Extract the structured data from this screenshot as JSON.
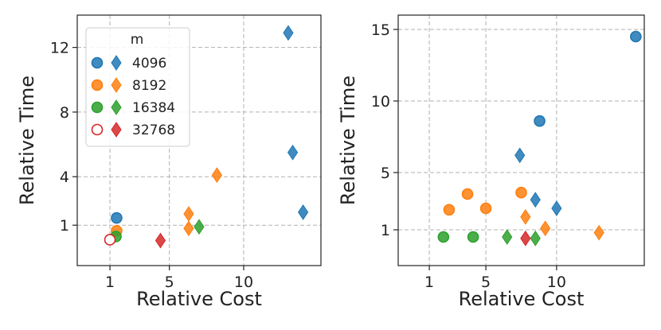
{
  "colors": {
    "4096": "#1f77b4",
    "8192": "#ff7f0e",
    "16384": "#2ca02c",
    "32768": "#d62728"
  },
  "legend": {
    "title": "m",
    "entries": [
      {
        "label": "4096",
        "key": "4096",
        "circle_filled": true
      },
      {
        "label": "8192",
        "key": "8192",
        "circle_filled": true
      },
      {
        "label": "16384",
        "key": "16384",
        "circle_filled": true
      },
      {
        "label": "32768",
        "key": "32768",
        "circle_filled": false
      }
    ]
  },
  "chart_data": [
    {
      "type": "scatter",
      "title": "",
      "xlabel": "Relative Cost",
      "ylabel": "Relative Time",
      "xlim": [
        -1.2,
        15.2
      ],
      "ylim": [
        -1.5,
        14.0
      ],
      "xticks": [
        1,
        5,
        10
      ],
      "yticks": [
        1,
        4,
        8,
        12
      ],
      "grid": true,
      "legend_position": "top-left",
      "points": [
        {
          "m": "4096",
          "marker": "circle",
          "x": 1.45,
          "y": 1.45
        },
        {
          "m": "8192",
          "marker": "circle",
          "x": 1.45,
          "y": 0.65
        },
        {
          "m": "16384",
          "marker": "circle",
          "x": 1.4,
          "y": 0.3
        },
        {
          "m": "32768",
          "marker": "circle",
          "x": 1.0,
          "y": 0.1
        },
        {
          "m": "4096",
          "marker": "diamond",
          "x": 13.0,
          "y": 12.9
        },
        {
          "m": "4096",
          "marker": "diamond",
          "x": 13.3,
          "y": 5.5
        },
        {
          "m": "4096",
          "marker": "diamond",
          "x": 14.0,
          "y": 1.8
        },
        {
          "m": "8192",
          "marker": "diamond",
          "x": 8.2,
          "y": 4.1
        },
        {
          "m": "8192",
          "marker": "diamond",
          "x": 6.3,
          "y": 1.7
        },
        {
          "m": "8192",
          "marker": "diamond",
          "x": 6.3,
          "y": 0.8
        },
        {
          "m": "16384",
          "marker": "diamond",
          "x": 7.0,
          "y": 0.9
        },
        {
          "m": "32768",
          "marker": "diamond",
          "x": 4.4,
          "y": 0.05
        }
      ]
    },
    {
      "type": "scatter",
      "title": "",
      "xlabel": "Relative Cost",
      "ylabel": "Relative Time",
      "xlim": [
        -1.2,
        16.2
      ],
      "ylim": [
        -1.5,
        16.0
      ],
      "xticks": [
        1,
        5,
        10
      ],
      "yticks": [
        1,
        5,
        10,
        15
      ],
      "grid": true,
      "points": [
        {
          "m": "4096",
          "marker": "circle",
          "x": 15.6,
          "y": 14.5
        },
        {
          "m": "4096",
          "marker": "circle",
          "x": 8.8,
          "y": 8.6
        },
        {
          "m": "8192",
          "marker": "circle",
          "x": 2.4,
          "y": 2.4
        },
        {
          "m": "8192",
          "marker": "circle",
          "x": 3.7,
          "y": 3.5
        },
        {
          "m": "8192",
          "marker": "circle",
          "x": 5.0,
          "y": 2.5
        },
        {
          "m": "8192",
          "marker": "circle",
          "x": 7.5,
          "y": 3.6
        },
        {
          "m": "16384",
          "marker": "circle",
          "x": 2.0,
          "y": 0.5
        },
        {
          "m": "16384",
          "marker": "circle",
          "x": 4.1,
          "y": 0.5
        },
        {
          "m": "4096",
          "marker": "diamond",
          "x": 7.4,
          "y": 6.2
        },
        {
          "m": "4096",
          "marker": "diamond",
          "x": 8.5,
          "y": 3.1
        },
        {
          "m": "4096",
          "marker": "diamond",
          "x": 10.0,
          "y": 2.5
        },
        {
          "m": "8192",
          "marker": "diamond",
          "x": 7.8,
          "y": 1.9
        },
        {
          "m": "8192",
          "marker": "diamond",
          "x": 9.2,
          "y": 1.1
        },
        {
          "m": "8192",
          "marker": "diamond",
          "x": 13.0,
          "y": 0.8
        },
        {
          "m": "16384",
          "marker": "diamond",
          "x": 6.5,
          "y": 0.5
        },
        {
          "m": "16384",
          "marker": "diamond",
          "x": 8.5,
          "y": 0.4
        },
        {
          "m": "32768",
          "marker": "diamond",
          "x": 7.8,
          "y": 0.4
        }
      ]
    }
  ]
}
